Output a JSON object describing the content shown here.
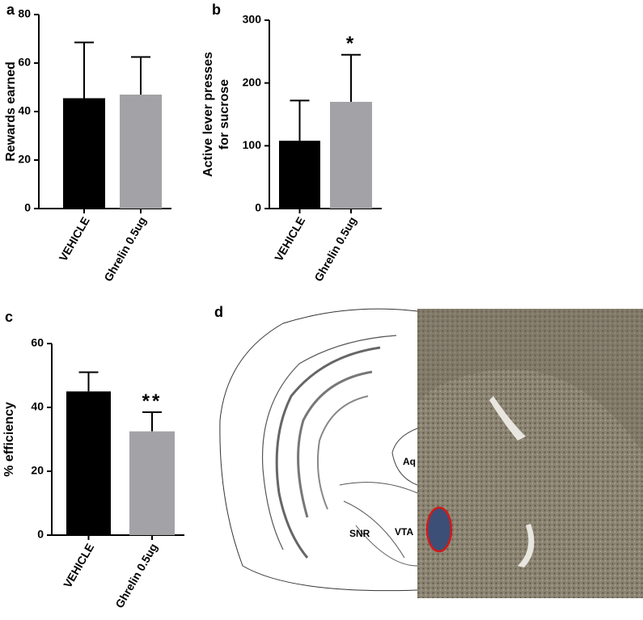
{
  "chart_data": [
    {
      "type": "bar",
      "panel_label": "a",
      "ylabel": [
        "Rewards earned"
      ],
      "categories": [
        "VEHICLE",
        "Ghrelin 0.5ug"
      ],
      "values": [
        45.5,
        47
      ],
      "errors": [
        23,
        15.5
      ],
      "colors": [
        "#000000",
        "#a3a3a7"
      ],
      "annotations": [
        null,
        null
      ],
      "ylim": [
        0,
        80
      ],
      "yticks": [
        0,
        20,
        40,
        60,
        80
      ]
    },
    {
      "type": "bar",
      "panel_label": "b",
      "ylabel": [
        "Active lever presses",
        "for sucrose"
      ],
      "categories": [
        "VEHICLE",
        "Ghrelin 0.5ug"
      ],
      "values": [
        108,
        170
      ],
      "errors": [
        64,
        75
      ],
      "colors": [
        "#000000",
        "#a3a3a7"
      ],
      "annotations": [
        null,
        "*"
      ],
      "ylim": [
        0,
        300
      ],
      "yticks": [
        0,
        100,
        200,
        300
      ]
    },
    {
      "type": "bar",
      "panel_label": "c",
      "ylabel": [
        "% efficiency"
      ],
      "categories": [
        "VEHICLE",
        "Ghrelin 0.5ug"
      ],
      "values": [
        45,
        32.5
      ],
      "errors": [
        6,
        6
      ],
      "colors": [
        "#000000",
        "#a3a3a7"
      ],
      "annotations": [
        null,
        "**"
      ],
      "ylim": [
        0,
        60
      ],
      "yticks": [
        0,
        20,
        40,
        60
      ]
    }
  ],
  "panel_d": {
    "label": "d",
    "regions": [
      "Aq",
      "SNR",
      "VTA"
    ]
  }
}
